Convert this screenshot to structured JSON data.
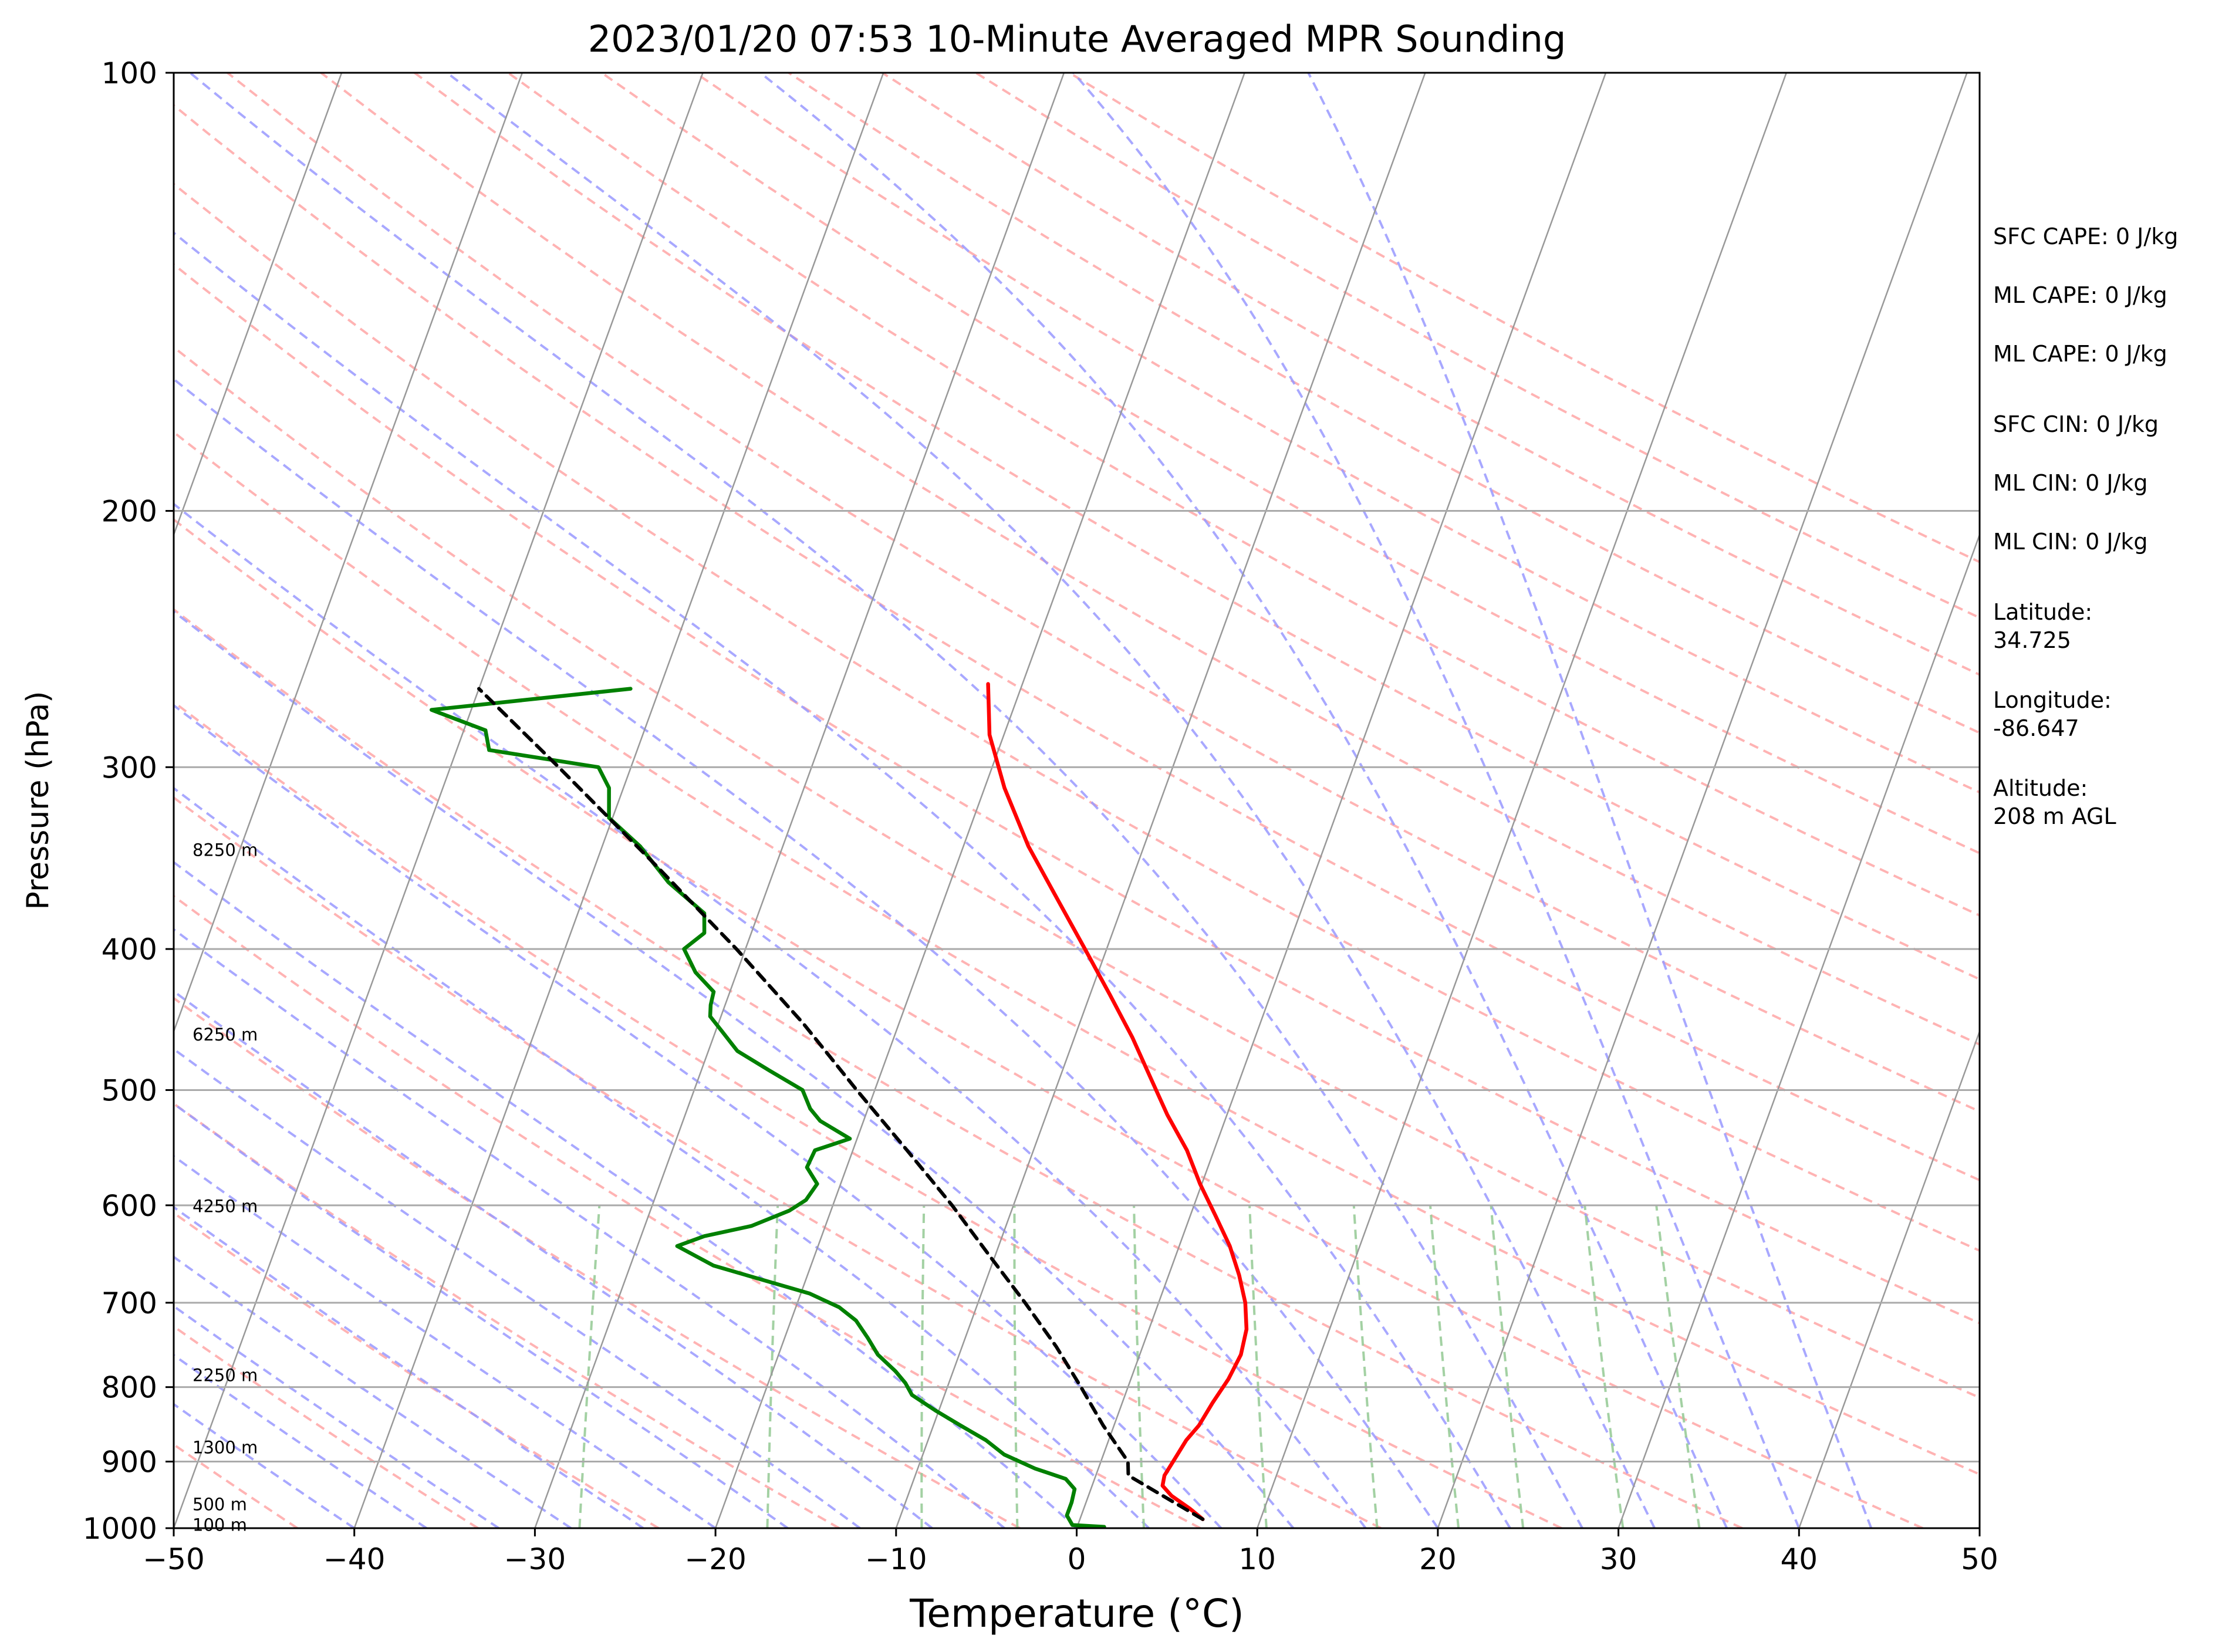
{
  "chart_data": {
    "type": "line",
    "title": "2023/01/20 07:53 10-Minute Averaged MPR Sounding",
    "xlabel": "Temperature (°C)",
    "ylabel": "Pressure (hPa)",
    "xlim": [
      -50,
      50
    ],
    "ylim": [
      1000,
      100
    ],
    "y_scale": "log",
    "skew_t": true,
    "grid": true,
    "x_ticks": [
      "−50",
      "−40",
      "−30",
      "−20",
      "−10",
      "0",
      "10",
      "20",
      "30",
      "40",
      "50"
    ],
    "x_tick_values": [
      -50,
      -40,
      -30,
      -20,
      -10,
      0,
      10,
      20,
      30,
      40,
      50
    ],
    "y_ticks": [
      "100",
      "200",
      "300",
      "400",
      "500",
      "600",
      "700",
      "800",
      "900",
      "1000"
    ],
    "y_tick_values": [
      100,
      200,
      300,
      400,
      500,
      600,
      700,
      800,
      900,
      1000
    ],
    "series": [
      {
        "color": "#ff0000",
        "points": [
          [
            986,
            6.8
          ],
          [
            970,
            5.9
          ],
          [
            950,
            4.6
          ],
          [
            935,
            3.9
          ],
          [
            920,
            3.8
          ],
          [
            900,
            4.0
          ],
          [
            870,
            4.3
          ],
          [
            850,
            4.7
          ],
          [
            820,
            5.0
          ],
          [
            790,
            5.4
          ],
          [
            760,
            5.6
          ],
          [
            730,
            5.4
          ],
          [
            700,
            4.8
          ],
          [
            670,
            3.9
          ],
          [
            640,
            2.8
          ],
          [
            610,
            1.4
          ],
          [
            580,
            -0.1
          ],
          [
            550,
            -1.5
          ],
          [
            520,
            -3.3
          ],
          [
            490,
            -5.0
          ],
          [
            460,
            -6.8
          ],
          [
            430,
            -8.9
          ],
          [
            400,
            -11.2
          ],
          [
            370,
            -13.7
          ],
          [
            340,
            -16.4
          ],
          [
            310,
            -18.9
          ],
          [
            285,
            -20.8
          ],
          [
            263,
            -21.9
          ]
        ]
      },
      {
        "color": "#008000",
        "points": [
          [
            998,
            1.5
          ],
          [
            995,
            -0.3
          ],
          [
            980,
            -0.8
          ],
          [
            960,
            -0.8
          ],
          [
            940,
            -0.9
          ],
          [
            925,
            -1.6
          ],
          [
            910,
            -3.5
          ],
          [
            890,
            -5.5
          ],
          [
            870,
            -6.8
          ],
          [
            850,
            -8.5
          ],
          [
            830,
            -10.2
          ],
          [
            810,
            -11.8
          ],
          [
            795,
            -12.4
          ],
          [
            780,
            -13.2
          ],
          [
            760,
            -14.5
          ],
          [
            740,
            -15.4
          ],
          [
            720,
            -16.4
          ],
          [
            705,
            -17.6
          ],
          [
            690,
            -19.5
          ],
          [
            660,
            -25.4
          ],
          [
            640,
            -27.8
          ],
          [
            630,
            -26.5
          ],
          [
            620,
            -24.1
          ],
          [
            605,
            -22.3
          ],
          [
            595,
            -21.6
          ],
          [
            580,
            -21.3
          ],
          [
            565,
            -22.2
          ],
          [
            550,
            -22.1
          ],
          [
            540,
            -20.4
          ],
          [
            525,
            -22.4
          ],
          [
            515,
            -23.2
          ],
          [
            500,
            -24.0
          ],
          [
            485,
            -26.2
          ],
          [
            470,
            -28.4
          ],
          [
            455,
            -29.7
          ],
          [
            445,
            -30.6
          ],
          [
            437,
            -30.8
          ],
          [
            428,
            -30.9
          ],
          [
            415,
            -32.3
          ],
          [
            400,
            -33.4
          ],
          [
            390,
            -32.6
          ],
          [
            378,
            -33.0
          ],
          [
            360,
            -35.6
          ],
          [
            340,
            -37.9
          ],
          [
            325,
            -40.2
          ],
          [
            310,
            -40.8
          ],
          [
            300,
            -41.8
          ],
          [
            292,
            -48.2
          ],
          [
            283,
            -48.8
          ],
          [
            274,
            -52.2
          ],
          [
            265,
            -41.6
          ]
        ]
      },
      {
        "color": "#000000",
        "dashed": true,
        "points": [
          [
            986,
            6.8
          ],
          [
            920,
            1.8
          ],
          [
            900,
            1.5
          ],
          [
            850,
            -0.6
          ],
          [
            800,
            -2.6
          ],
          [
            750,
            -4.8
          ],
          [
            700,
            -7.4
          ],
          [
            650,
            -10.3
          ],
          [
            600,
            -13.4
          ],
          [
            550,
            -17.0
          ],
          [
            500,
            -21.0
          ],
          [
            450,
            -25.3
          ],
          [
            400,
            -30.5
          ],
          [
            350,
            -36.7
          ],
          [
            300,
            -44.0
          ],
          [
            265,
            -50.0
          ]
        ]
      }
    ],
    "background_lines": {
      "dry_adiabats_color": "#ff9999",
      "moist_adiabats_color": "#9999ff",
      "mixing_ratio_color": "#99cc99",
      "isotherm_color": "#999999"
    },
    "height_labels": [
      {
        "label": "8250 m",
        "p": 342
      },
      {
        "label": "6250 m",
        "p": 458
      },
      {
        "label": "4250 m",
        "p": 601
      },
      {
        "label": "2250 m",
        "p": 785
      },
      {
        "label": "1300 m",
        "p": 880
      },
      {
        "label": "500 m",
        "p": 963
      },
      {
        "label": "100 m",
        "p": 995
      }
    ],
    "stats": [
      "SFC CAPE: 0 J/kg",
      "ML CAPE: 0 J/kg",
      "ML CAPE: 0 J/kg",
      "SFC CIN: 0 J/kg",
      "ML CIN: 0 J/kg",
      "ML CIN: 0 J/kg",
      "Latitude:",
      "34.725",
      "Longitude:",
      "-86.647",
      "Altitude:",
      "208 m AGL"
    ]
  }
}
